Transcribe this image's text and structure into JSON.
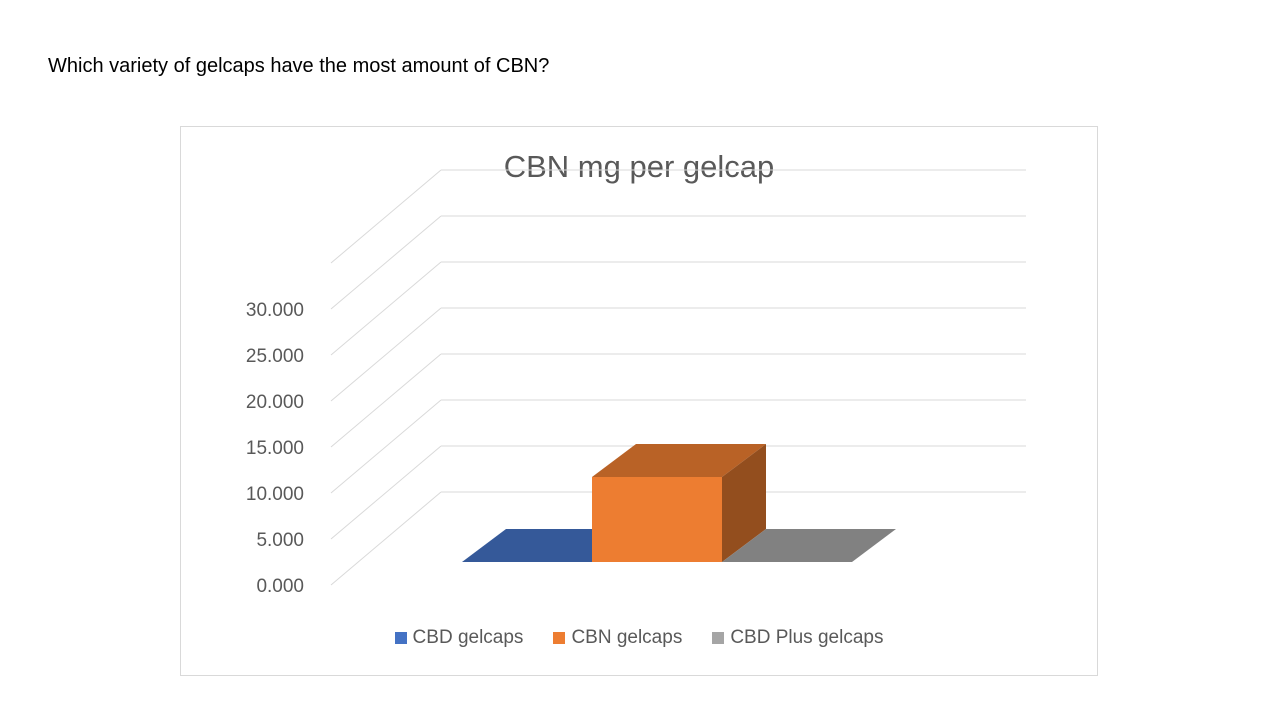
{
  "question": "Which variety of gelcaps have the most amount of CBN?",
  "chart_data": {
    "type": "bar",
    "title": "CBN mg per gelcap",
    "categories": [
      "CBD gelcaps",
      "CBN gelcaps",
      "CBD Plus gelcaps"
    ],
    "values": [
      0,
      10,
      0
    ],
    "colors": [
      "#4472c4",
      "#ed7d31",
      "#a5a5a5"
    ],
    "ylim": [
      0,
      30
    ],
    "yticks": [
      "0.000",
      "5.000",
      "10.000",
      "15.000",
      "20.000",
      "25.000",
      "30.000"
    ],
    "grid": true,
    "legend": "bottom",
    "style": "3d"
  }
}
